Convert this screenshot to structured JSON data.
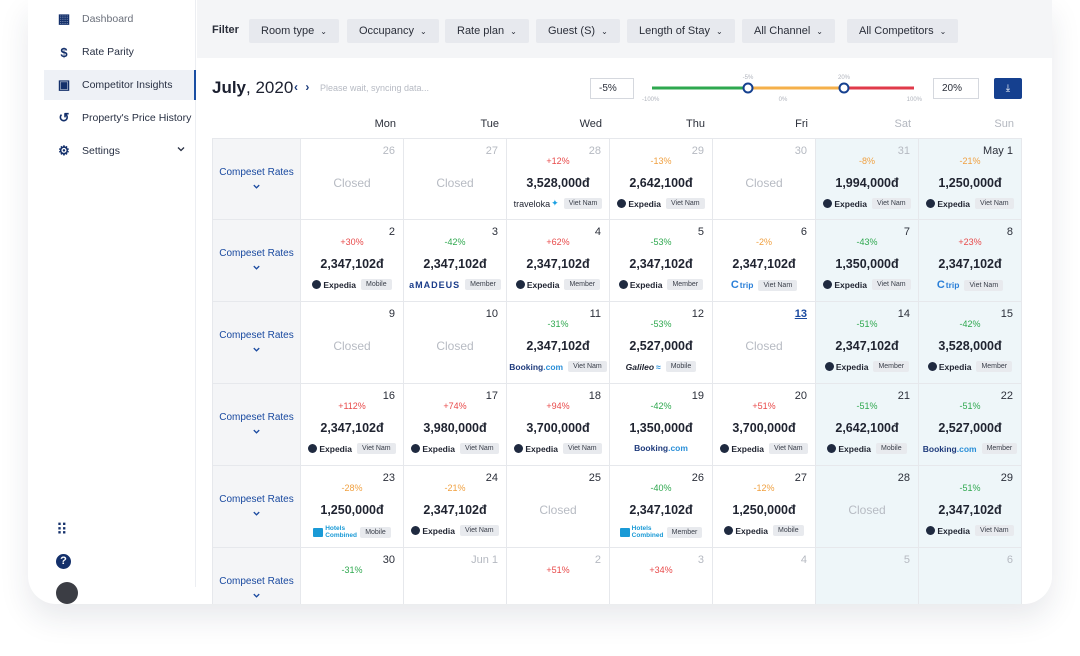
{
  "sidebar": {
    "items": [
      {
        "label": "Dashboard",
        "icon": "dashboard-icon",
        "glyph": "▦",
        "active": false
      },
      {
        "label": "Rate Parity",
        "icon": "dollar-icon",
        "glyph": "$",
        "active": false
      },
      {
        "label": "Competitor Insights",
        "icon": "calendar-icon",
        "glyph": "▣",
        "active": true
      },
      {
        "label": "Property's Price History",
        "icon": "history-icon",
        "glyph": "↺",
        "active": false
      },
      {
        "label": "Settings",
        "icon": "gear-icon",
        "glyph": "⚙",
        "active": false
      }
    ],
    "apps_glyph": "⠿",
    "help_glyph": "?"
  },
  "filter": {
    "label": "Filter",
    "buttons": [
      "Room type",
      "Occupancy",
      "Rate plan",
      "Guest (S)",
      "Length of Stay",
      "All Channel",
      "All Competitors"
    ]
  },
  "toolbar": {
    "month": "July",
    "year": ", 2020",
    "arrows": "‹ ›",
    "sync": "Please wait, syncing data...",
    "min_value": "-5%",
    "max_value": "20%",
    "slider_top_labels": [
      "-5%",
      "20%"
    ],
    "slider_bottom_labels": [
      "-100%",
      "0%",
      "100%"
    ],
    "download_glyph": "⤓",
    "colors": {
      "green": "#2fa84f",
      "orange": "#f5b04a",
      "red": "#e03a4a",
      "handle": "#15408f"
    }
  },
  "weekdays": [
    "Mon",
    "Tue",
    "Wed",
    "Thu",
    "Fri",
    "Sat",
    "Sun"
  ],
  "row_label": "Compeset Rates",
  "rows": [
    [
      {
        "day": "26",
        "faded": true,
        "closed": "Closed"
      },
      {
        "day": "27",
        "faded": true,
        "closed": "Closed"
      },
      {
        "day": "28",
        "faded": true,
        "delta": "+12%",
        "tone": "red",
        "price": "3,528,000đ",
        "brand": "traveloka",
        "brand_text": "traveloka",
        "tag": "Viet Nam"
      },
      {
        "day": "29",
        "faded": true,
        "delta": "-13%",
        "tone": "orange",
        "price": "2,642,100đ",
        "brand": "expedia",
        "brand_text": "Expedia",
        "tag": "Viet Nam"
      },
      {
        "day": "30",
        "faded": true,
        "closed": "Closed"
      },
      {
        "day": "31",
        "faded": true,
        "delta": "-8%",
        "tone": "orange",
        "price": "1,994,000đ",
        "brand": "expedia",
        "brand_text": "Expedia",
        "tag": "Viet Nam"
      },
      {
        "day": "May 1",
        "faded": false,
        "delta": "-21%",
        "tone": "orange",
        "price": "1,250,000đ",
        "brand": "expedia",
        "brand_text": "Expedia",
        "tag": "Viet Nam"
      }
    ],
    [
      {
        "day": "2",
        "delta": "+30%",
        "tone": "red",
        "price": "2,347,102đ",
        "brand": "expedia",
        "brand_text": "Expedia",
        "tag": "Mobile"
      },
      {
        "day": "3",
        "delta": "-42%",
        "tone": "green",
        "price": "2,347,102đ",
        "brand": "amadeus",
        "brand_text": "aMADEUS",
        "tag": "Member"
      },
      {
        "day": "4",
        "delta": "+62%",
        "tone": "red",
        "price": "2,347,102đ",
        "brand": "expedia",
        "brand_text": "Expedia",
        "tag": "Member"
      },
      {
        "day": "5",
        "delta": "-53%",
        "tone": "green",
        "price": "2,347,102đ",
        "brand": "expedia",
        "brand_text": "Expedia",
        "tag": "Member"
      },
      {
        "day": "6",
        "delta": "-2%",
        "tone": "orange",
        "price": "2,347,102đ",
        "brand": "ctrip",
        "brand_text": "Ctrip",
        "tag": "Viet Nam"
      },
      {
        "day": "7",
        "delta": "-43%",
        "tone": "green",
        "price": "1,350,000đ",
        "brand": "expedia",
        "brand_text": "Expedia",
        "tag": "Viet Nam"
      },
      {
        "day": "8",
        "delta": "+23%",
        "tone": "red",
        "price": "2,347,102đ",
        "brand": "ctrip",
        "brand_text": "Ctrip",
        "tag": "Viet Nam"
      }
    ],
    [
      {
        "day": "9",
        "closed": "Closed"
      },
      {
        "day": "10",
        "closed": "Closed"
      },
      {
        "day": "11",
        "delta": "-31%",
        "tone": "green",
        "price": "2,347,102đ",
        "brand": "booking",
        "brand_text": "Booking",
        "brand_suffix": ".com",
        "tag": "Viet Nam"
      },
      {
        "day": "12",
        "delta": "-53%",
        "tone": "green",
        "price": "2,527,000đ",
        "brand": "galileo",
        "brand_text": "Galileo",
        "tag": "Mobile"
      },
      {
        "day": "13",
        "link": true,
        "closed": "Closed"
      },
      {
        "day": "14",
        "delta": "-51%",
        "tone": "green",
        "price": "2,347,102đ",
        "brand": "expedia",
        "brand_text": "Expedia",
        "tag": "Member"
      },
      {
        "day": "15",
        "delta": "-42%",
        "tone": "green",
        "price": "3,528,000đ",
        "brand": "expedia",
        "brand_text": "Expedia",
        "tag": "Member"
      }
    ],
    [
      {
        "day": "16",
        "delta": "+112%",
        "tone": "red",
        "price": "2,347,102đ",
        "brand": "expedia",
        "brand_text": "Expedia",
        "tag": "Viet Nam"
      },
      {
        "day": "17",
        "delta": "+74%",
        "tone": "red",
        "price": "3,980,000đ",
        "brand": "expedia",
        "brand_text": "Expedia",
        "tag": "Viet Nam"
      },
      {
        "day": "18",
        "delta": "+94%",
        "tone": "red",
        "price": "3,700,000đ",
        "brand": "expedia",
        "brand_text": "Expedia",
        "tag": "Viet Nam"
      },
      {
        "day": "19",
        "delta": "-42%",
        "tone": "green",
        "price": "1,350,000đ",
        "brand": "booking",
        "brand_text": "Booking",
        "brand_suffix": ".com"
      },
      {
        "day": "20",
        "delta": "+51%",
        "tone": "red",
        "price": "3,700,000đ",
        "brand": "expedia",
        "brand_text": "Expedia",
        "tag": "Viet Nam"
      },
      {
        "day": "21",
        "delta": "-51%",
        "tone": "green",
        "price": "2,642,100đ",
        "brand": "expedia",
        "brand_text": "Expedia",
        "tag": "Mobile"
      },
      {
        "day": "22",
        "delta": "-51%",
        "tone": "green",
        "price": "2,527,000đ",
        "brand": "booking",
        "brand_text": "Booking",
        "brand_suffix": ".com",
        "tag": "Member"
      }
    ],
    [
      {
        "day": "23",
        "delta": "-28%",
        "tone": "orange",
        "price": "1,250,000đ",
        "brand": "hotels",
        "brand_text": "Hotels Combined",
        "tag": "Mobile"
      },
      {
        "day": "24",
        "delta": "-21%",
        "tone": "orange",
        "price": "2,347,102đ",
        "brand": "expedia",
        "brand_text": "Expedia",
        "tag": "Viet Nam"
      },
      {
        "day": "25",
        "closed": "Closed"
      },
      {
        "day": "26",
        "delta": "-40%",
        "tone": "green",
        "price": "2,347,102đ",
        "brand": "hotels",
        "brand_text": "Hotels Combined",
        "tag": "Member"
      },
      {
        "day": "27",
        "delta": "-12%",
        "tone": "orange",
        "price": "1,250,000đ",
        "brand": "expedia",
        "brand_text": "Expedia",
        "tag": "Mobile"
      },
      {
        "day": "28",
        "closed": "Closed"
      },
      {
        "day": "29",
        "delta": "-51%",
        "tone": "green",
        "price": "2,347,102đ",
        "brand": "expedia",
        "brand_text": "Expedia",
        "tag": "Viet Nam"
      }
    ],
    [
      {
        "day": "30",
        "delta": "-31%",
        "tone": "green"
      },
      {
        "day": "Jun 1",
        "faded": true
      },
      {
        "day": "2",
        "faded": true,
        "delta": "+51%",
        "tone": "red"
      },
      {
        "day": "3",
        "faded": true,
        "delta": "+34%",
        "tone": "red"
      },
      {
        "day": "4",
        "faded": true
      },
      {
        "day": "5",
        "faded": true
      },
      {
        "day": "6",
        "faded": true
      }
    ]
  ]
}
